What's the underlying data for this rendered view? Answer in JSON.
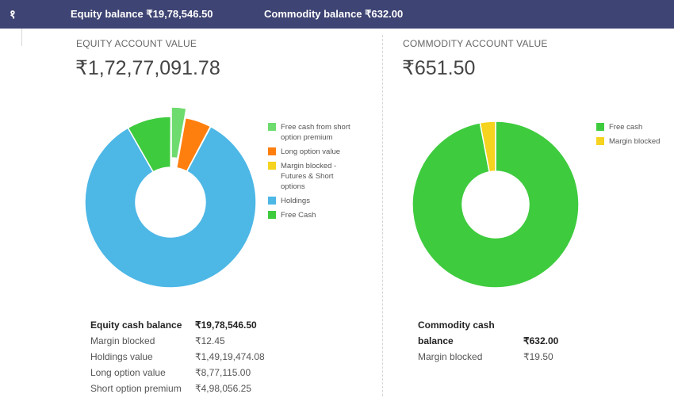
{
  "topbar": {
    "logo": "१",
    "equity_balance": "Equity balance ₹19,78,546.50",
    "commodity_balance": "Commodity balance ₹632.00"
  },
  "equity": {
    "label": "EQUITY ACCOUNT VALUE",
    "value": "₹1,72,77,091.78",
    "legend": [
      {
        "label": "Free cash from short option premium",
        "color": "#6edb6e"
      },
      {
        "label": "Long option value",
        "color": "#ff7f0e"
      },
      {
        "label": "Margin blocked - Futures & Short options",
        "color": "#f5d31e"
      },
      {
        "label": "Holdings",
        "color": "#4db7e6"
      },
      {
        "label": "Free Cash",
        "color": "#3ecb3e"
      }
    ],
    "stats": [
      {
        "label": "Equity cash balance",
        "value": "₹19,78,546.50",
        "bold": true
      },
      {
        "label": "Margin blocked",
        "value": "₹12.45"
      },
      {
        "label": "Holdings value",
        "value": "₹1,49,19,474.08"
      },
      {
        "label": "Long option value",
        "value": "₹8,77,115.00"
      },
      {
        "label": "Short option premium",
        "value": "₹4,98,056.25"
      }
    ]
  },
  "commodity": {
    "label": "COMMODITY ACCOUNT VALUE",
    "value": "₹651.50",
    "legend": [
      {
        "label": "Free cash",
        "color": "#3ecb3e"
      },
      {
        "label": "Margin blocked",
        "color": "#f5d31e"
      }
    ],
    "stats": [
      {
        "label": "Commodity cash balance",
        "value": "₹632.00",
        "bold": true
      },
      {
        "label": "Margin blocked",
        "value": "₹19.50"
      }
    ]
  },
  "chart_data": [
    {
      "type": "pie",
      "title": "EQUITY ACCOUNT VALUE",
      "categories": [
        "Free cash from short option premium",
        "Long option value",
        "Margin blocked - Futures & Short options",
        "Holdings",
        "Free Cash"
      ],
      "values": [
        498056.25,
        877115.0,
        12.45,
        14919474.08,
        1480490.25
      ],
      "colors": [
        "#6edb6e",
        "#ff7f0e",
        "#f5d31e",
        "#4db7e6",
        "#3ecb3e"
      ],
      "donut": true,
      "exploded": [
        "Free cash from short option premium"
      ],
      "legend": "right"
    },
    {
      "type": "pie",
      "title": "COMMODITY ACCOUNT VALUE",
      "categories": [
        "Free cash",
        "Margin blocked"
      ],
      "values": [
        632.0,
        19.5
      ],
      "colors": [
        "#3ecb3e",
        "#f5d31e"
      ],
      "donut": true,
      "legend": "right"
    }
  ]
}
